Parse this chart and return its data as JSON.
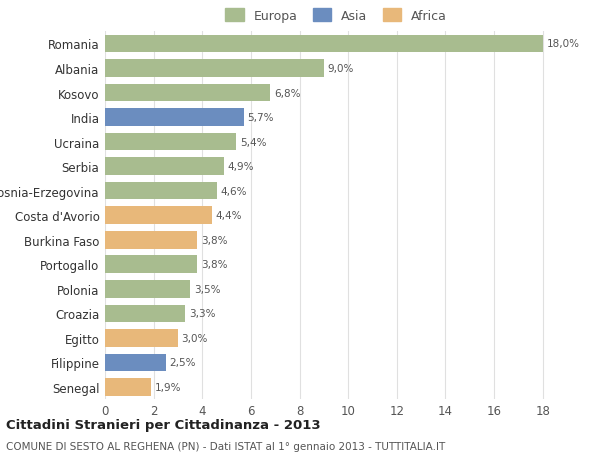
{
  "categories": [
    "Romania",
    "Albania",
    "Kosovo",
    "India",
    "Ucraina",
    "Serbia",
    "Bosnia-Erzegovina",
    "Costa d'Avorio",
    "Burkina Faso",
    "Portogallo",
    "Polonia",
    "Croazia",
    "Egitto",
    "Filippine",
    "Senegal"
  ],
  "values": [
    18.0,
    9.0,
    6.8,
    5.7,
    5.4,
    4.9,
    4.6,
    4.4,
    3.8,
    3.8,
    3.5,
    3.3,
    3.0,
    2.5,
    1.9
  ],
  "continents": [
    "Europa",
    "Europa",
    "Europa",
    "Asia",
    "Europa",
    "Europa",
    "Europa",
    "Africa",
    "Africa",
    "Europa",
    "Europa",
    "Europa",
    "Africa",
    "Asia",
    "Africa"
  ],
  "colors": {
    "Europa": "#a8bc8f",
    "Asia": "#6b8dbf",
    "Africa": "#e8b87a"
  },
  "bar_labels": [
    "18,0%",
    "9,0%",
    "6,8%",
    "5,7%",
    "5,4%",
    "4,9%",
    "4,6%",
    "4,4%",
    "3,8%",
    "3,8%",
    "3,5%",
    "3,3%",
    "3,0%",
    "2,5%",
    "1,9%"
  ],
  "title": "Cittadini Stranieri per Cittadinanza - 2013",
  "subtitle": "COMUNE DI SESTO AL REGHENA (PN) - Dati ISTAT al 1° gennaio 2013 - TUTTITALIA.IT",
  "xlim": [
    0,
    19
  ],
  "xticks": [
    0,
    2,
    4,
    6,
    8,
    10,
    12,
    14,
    16,
    18
  ],
  "background_color": "#ffffff",
  "grid_color": "#e0e0e0"
}
